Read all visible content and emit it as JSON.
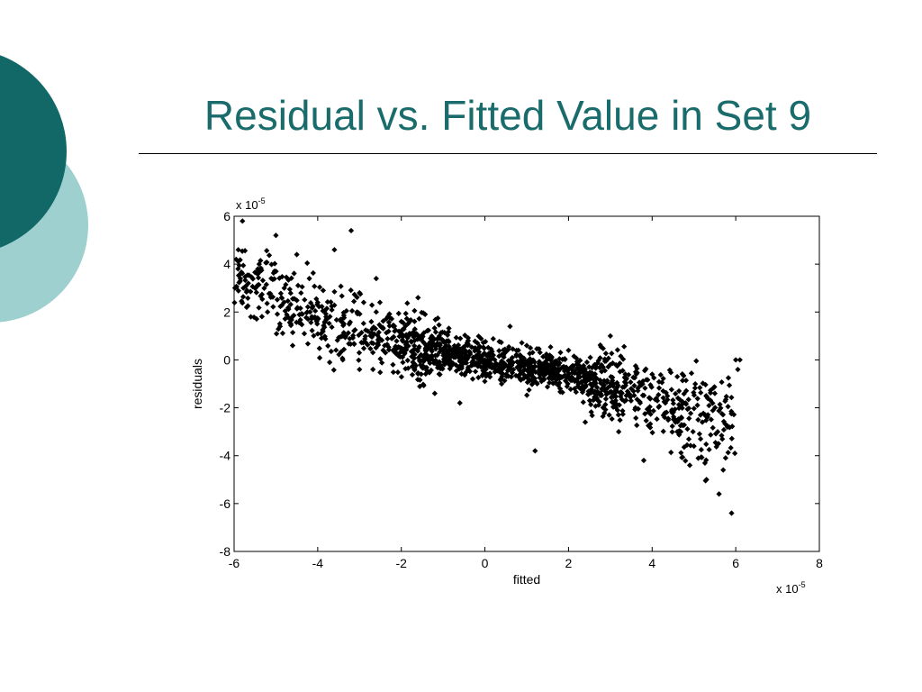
{
  "slide": {
    "title": "Residual vs. Fitted Value in Set 9"
  },
  "colors": {
    "circle_dark": "#126767",
    "circle_light": "#9ed0d0",
    "title": "#1a6b6b",
    "points": "#000000"
  },
  "chart_data": {
    "type": "scatter",
    "title": "",
    "xlabel": "fitted",
    "ylabel": "residuals",
    "xlim": [
      -6,
      8
    ],
    "ylim": [
      -8,
      6
    ],
    "x_ticks": [
      "-6",
      "-4",
      "-2",
      "0",
      "2",
      "4",
      "6",
      "8"
    ],
    "y_ticks": [
      "6",
      "4",
      "2",
      "0",
      "-2",
      "-4",
      "-6",
      "-8"
    ],
    "x_multiplier": {
      "base": "x 10",
      "exp": "-5"
    },
    "y_multiplier": {
      "base": "x 10",
      "exp": "-5"
    },
    "grid": false,
    "approx_point_count": 2500,
    "trend": {
      "x": [
        -6,
        -4,
        -2,
        0,
        2,
        4,
        6
      ],
      "y": [
        3.5,
        1.8,
        0.6,
        0.0,
        -0.6,
        -1.6,
        -3.2
      ]
    },
    "series": [
      {
        "marker": "dot",
        "x": [
          -5.9,
          -5.85,
          -5.8,
          -5.7,
          -5.4,
          -5.0,
          -4.8,
          -4.5,
          -4.0,
          -3.6,
          -3.4,
          -3.2,
          -3.0,
          -2.8,
          -2.6,
          -2.4,
          -2.0,
          -1.6,
          -1.0,
          -0.4,
          0.2,
          0.6,
          1.0,
          1.5,
          2.0,
          2.5,
          3.0,
          3.5,
          4.0,
          4.5,
          4.8,
          5.0,
          5.2,
          5.5,
          5.7,
          5.9,
          6.0,
          6.05,
          6.1,
          -5.6,
          -5.2,
          -4.6,
          -4.2,
          -3.8,
          -3.4,
          -2.9,
          -2.2,
          -1.8,
          -1.2,
          -0.6,
          0.4,
          0.8,
          1.2,
          1.8,
          2.4,
          3.2,
          3.8,
          4.3,
          4.9,
          5.3,
          5.6,
          -2.6,
          -1.4,
          0.0,
          1.6,
          3.6,
          -5.95,
          -5.5,
          -4.9,
          -3.0,
          -0.2,
          2.8,
          4.6,
          5.8
        ],
        "y": [
          4.6,
          3.4,
          5.8,
          2.2,
          4.0,
          5.2,
          3.0,
          4.4,
          2.4,
          4.6,
          1.0,
          5.4,
          2.8,
          1.2,
          3.4,
          0.6,
          1.6,
          2.6,
          0.4,
          0.8,
          0.2,
          1.4,
          0.6,
          -0.2,
          0.4,
          -0.8,
          1.0,
          -1.2,
          -0.6,
          -2.2,
          -1.8,
          -3.6,
          -2.6,
          -1.4,
          -4.6,
          -6.4,
          0.0,
          -0.4,
          0.0,
          1.8,
          2.0,
          0.6,
          3.4,
          1.8,
          0.0,
          2.4,
          -0.2,
          1.6,
          -1.4,
          -1.8,
          -1.0,
          0.4,
          -3.8,
          -1.2,
          -2.6,
          -3.0,
          -4.2,
          -2.4,
          -4.4,
          -5.0,
          -5.6,
          2.0,
          0.2,
          0.0,
          -0.8,
          -2.0,
          4.2,
          3.0,
          1.4,
          -0.4,
          -0.2,
          -1.2,
          -3.0,
          -2.8
        ]
      }
    ]
  }
}
